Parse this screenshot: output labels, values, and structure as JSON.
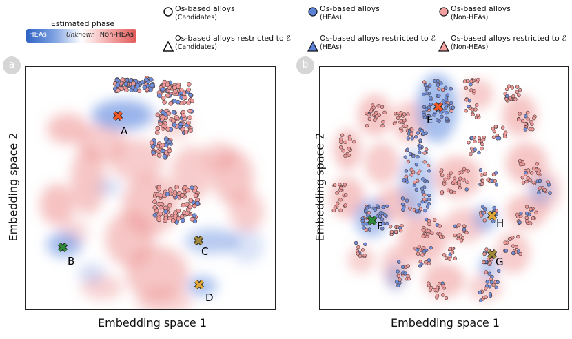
{
  "legend": {
    "title": "Estimated phase",
    "colorbar": {
      "left": "HEAs",
      "middle": "Unknown",
      "right": "Non-HEAs"
    },
    "items": [
      {
        "main": "Os-based alloys",
        "sub": "(Candidates)"
      },
      {
        "main": "Os-based alloys restricted to ℰ",
        "sub": "(Candidates)"
      },
      {
        "main": "Os-based alloys",
        "sub": "(HEAs)"
      },
      {
        "main": "Os-based alloys restricted to ℰ",
        "sub": "(HEAs)"
      },
      {
        "main": "Os-based alloys",
        "sub": "(Non-HEAs)"
      },
      {
        "main": "Os-based alloys restricted to ℰ",
        "sub": "(Non-HEAs)"
      }
    ]
  },
  "panels": {
    "a": {
      "badge": "a",
      "xlabel": "Embedding space 1",
      "ylabel": "Embedding space 2",
      "markers": [
        "A",
        "B",
        "C",
        "D"
      ]
    },
    "b": {
      "badge": "b",
      "xlabel": "Embedding space 1",
      "ylabel": "Embedding space 2",
      "markers": [
        "E",
        "F",
        "G",
        "H"
      ]
    }
  },
  "colors": {
    "hea": "#3f6fd1",
    "nonhea": "#e46a6a",
    "marker_a": "#f05a28",
    "marker_b": "#2e8b3a",
    "marker_c": "#a28a3c",
    "marker_d": "#e0a83a"
  }
}
